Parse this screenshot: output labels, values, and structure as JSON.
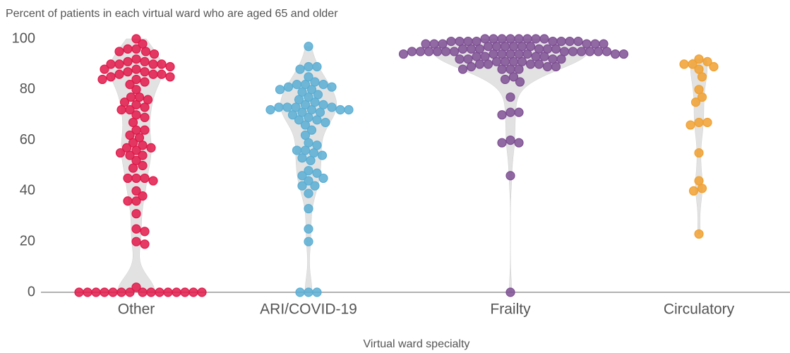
{
  "chart_data": {
    "type": "violin-swarm",
    "title": "Percent of patients in each virtual ward who are aged 65 and older",
    "xlabel": "Virtual ward specialty",
    "categories": [
      "Other",
      "ARI/COVID-19",
      "Frailty",
      "Circulatory"
    ],
    "ylim": [
      0,
      100
    ],
    "yticks": [
      0,
      20,
      40,
      60,
      80,
      100
    ],
    "violin_color": "#e2e2e2",
    "groups": [
      {
        "color": "#e0194a",
        "values": [
          100,
          98,
          96,
          96,
          95,
          95,
          94,
          92,
          91,
          91,
          90,
          90,
          90,
          90,
          89,
          88,
          88,
          87,
          87,
          86,
          86,
          86,
          85,
          85,
          84,
          84,
          83,
          82,
          80,
          77,
          77,
          76,
          75,
          74,
          73,
          72,
          72,
          70,
          69,
          67,
          64,
          64,
          62,
          61,
          59,
          58,
          57,
          57,
          56,
          55,
          54,
          54,
          52,
          50,
          49,
          45,
          45,
          45,
          44,
          40,
          38,
          36,
          36,
          31,
          25,
          24,
          20,
          19,
          2,
          0,
          0,
          0,
          0,
          0,
          0,
          0,
          0,
          0,
          0,
          0,
          0,
          0,
          0,
          0
        ]
      },
      {
        "color": "#5aaed4",
        "values": [
          97,
          89,
          89,
          88,
          85,
          83,
          82,
          82,
          82,
          81,
          81,
          80,
          80,
          79,
          78,
          77,
          76,
          75,
          74,
          74,
          73,
          73,
          73,
          73,
          72,
          72,
          72,
          72,
          71,
          71,
          70,
          69,
          68,
          68,
          67,
          66,
          64,
          62,
          59,
          58,
          56,
          56,
          55,
          54,
          53,
          52,
          48,
          47,
          46,
          45,
          44,
          42,
          42,
          39,
          33,
          25,
          20,
          0,
          0,
          0
        ]
      },
      {
        "color": "#7e4f93",
        "values": [
          100,
          100,
          100,
          100,
          100,
          100,
          100,
          100,
          99,
          99,
          99,
          99,
          99,
          99,
          99,
          99,
          98,
          98,
          98,
          98,
          98,
          98,
          97,
          97,
          97,
          97,
          97,
          97,
          96,
          96,
          96,
          96,
          96,
          96,
          95,
          95,
          95,
          95,
          95,
          95,
          95,
          95,
          95,
          95,
          95,
          95,
          94,
          94,
          94,
          94,
          94,
          94,
          94,
          94,
          93,
          93,
          93,
          93,
          92,
          92,
          92,
          92,
          91,
          91,
          91,
          91,
          90,
          90,
          90,
          90,
          89,
          89,
          89,
          88,
          88,
          88,
          88,
          85,
          84,
          83,
          77,
          71,
          71,
          70,
          60,
          59,
          59,
          46,
          0
        ]
      },
      {
        "color": "#f0a030",
        "values": [
          92,
          91,
          90,
          90,
          89,
          88,
          85,
          80,
          77,
          75,
          67,
          67,
          66,
          55,
          44,
          41,
          40,
          23
        ]
      }
    ]
  }
}
